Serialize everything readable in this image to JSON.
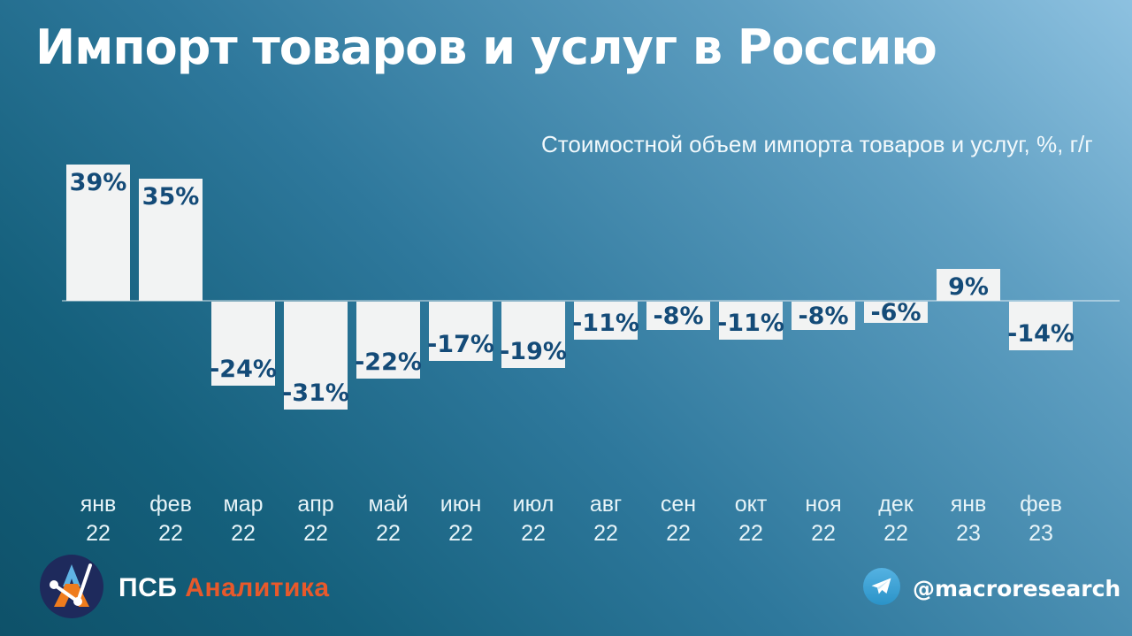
{
  "title": "Импорт товаров и услуг в Россию",
  "subtitle": "Стоимостной объем импорта товаров и услуг, %, г/г",
  "chart_data": {
    "type": "bar",
    "categories": [
      "янв 22",
      "фев 22",
      "мар 22",
      "апр 22",
      "май 22",
      "июн 22",
      "июл 22",
      "авг 22",
      "сен 22",
      "окт 22",
      "ноя 22",
      "дек 22",
      "янв 23",
      "фев 23"
    ],
    "values": [
      39,
      35,
      -24,
      -31,
      -22,
      -17,
      -19,
      -11,
      -8,
      -11,
      -8,
      -6,
      9,
      -14
    ],
    "value_labels": [
      "39%",
      "35%",
      "-24%",
      "-31%",
      "-22%",
      "-17%",
      "-19%",
      "-11%",
      "-8%",
      "-11%",
      "-8%",
      "-6%",
      "9%",
      "-14%"
    ],
    "title": "Импорт товаров и услуг в Россию",
    "subtitle": "Стоимостной объем импорта товаров и услуг, %, г/г",
    "unit": "%, г/г",
    "ylim": [
      -35,
      42
    ],
    "grid": "off",
    "legend": "none",
    "bar_color": "#f2f3f3",
    "label_color": "#144b78",
    "background_gradient": [
      "#8dc1e0",
      "#0e5169"
    ]
  },
  "footer": {
    "brand": {
      "psb": "ПСБ",
      "analytics": "Аналитика",
      "logo_icon": "psb-analytics-logo",
      "accent_color": "#e8592b"
    },
    "telegram": {
      "icon": "telegram-plane-icon",
      "handle": "@macroresearch",
      "color": "#3ba2d8"
    }
  }
}
